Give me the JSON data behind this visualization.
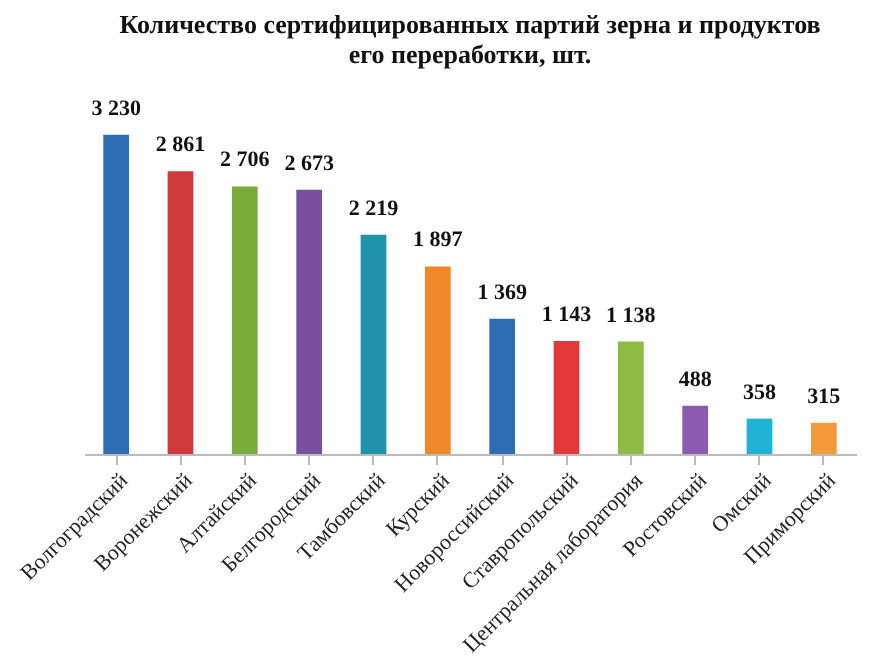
{
  "chart_data": {
    "type": "bar",
    "title": "Количество сертифицированных партий зерна и продуктов его переработки, шт.",
    "categories": [
      "Волгоградский",
      "Воронежский",
      "Алтайский",
      "Белгородский",
      "Тамбовский",
      "Курский",
      "Новороссийский",
      "Ставропольский",
      "Центральная лаборатория",
      "Ростовский",
      "Омский",
      "Приморский"
    ],
    "values": [
      3230,
      2861,
      2706,
      2673,
      2219,
      1897,
      1369,
      1143,
      1138,
      488,
      358,
      315
    ],
    "value_labels": [
      "3 230",
      "2 861",
      "2 706",
      "2 673",
      "2 219",
      "1 897",
      "1 369",
      "1 143",
      "1 138",
      "488",
      "358",
      "315"
    ],
    "colors": [
      "#2e6db4",
      "#d0383a",
      "#7aac3c",
      "#7a4f9e",
      "#1f93a8",
      "#f0882a",
      "#2e6db4",
      "#e23a3a",
      "#8dbb43",
      "#8b5bb0",
      "#1fb4d6",
      "#f59a3a"
    ]
  }
}
